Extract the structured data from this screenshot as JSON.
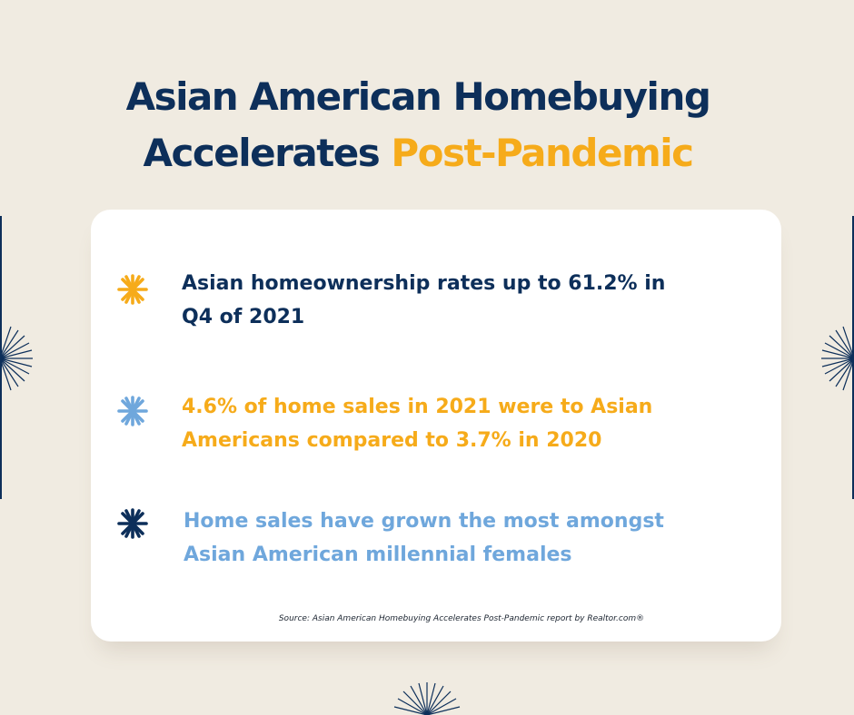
{
  "title": {
    "line1": "Asian American Homebuying",
    "line2_main": "Accelerates ",
    "line2_accent": "Post-Pandemic"
  },
  "items": [
    {
      "line1": "Asian homeownership rates up to 61.2% in",
      "line2": "Q4 of 2021",
      "icon": "star-burst-icon",
      "color": "#0d2f5a",
      "icon_color": "#f6ab1a"
    },
    {
      "line1": "4.6% of home sales in 2021 were to Asian",
      "line2": "Americans compared to 3.7% in 2020",
      "icon": "star-burst-icon",
      "color": "#f6ab1a",
      "icon_color": "#6fa7dc"
    },
    {
      "line1": "Home sales have grown the most amongst",
      "line2": "Asian American millennial females",
      "icon": "star-burst-icon",
      "color": "#6fa7dc",
      "icon_color": "#0d2f5a"
    }
  ],
  "source": "Source: Asian American Homebuying Accelerates Post-Pandemic report by Realtor.com®",
  "colors": {
    "background": "#f0ebe1",
    "navy": "#0d2f5a",
    "gold": "#f6ab1a",
    "light_blue": "#6fa7dc",
    "card": "#ffffff"
  }
}
